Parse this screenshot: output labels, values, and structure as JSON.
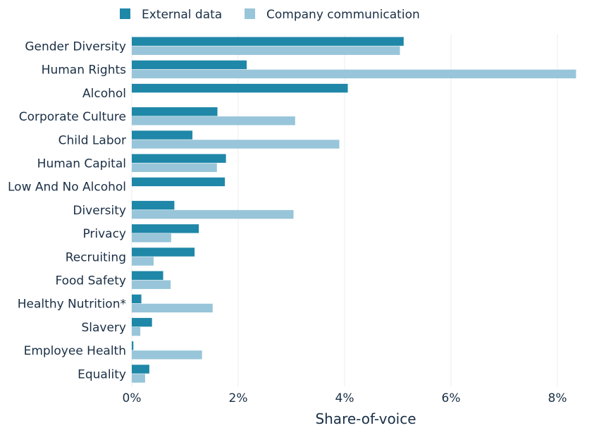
{
  "chart_data": {
    "type": "bar",
    "orientation": "horizontal",
    "categories": [
      "Gender Diversity",
      "Human Rights",
      "Alcohol",
      "Corporate Culture",
      "Child Labor",
      "Human Capital",
      "Low And No Alcohol",
      "Diversity",
      "Privacy",
      "Recruiting",
      "Food Safety",
      "Healthy Nutrition*",
      "Slavery",
      "Employee Health",
      "Equality"
    ],
    "series": [
      {
        "name": "External data",
        "color": "#1f87a8",
        "values": [
          5.11,
          2.16,
          4.06,
          1.61,
          1.14,
          1.77,
          1.75,
          0.8,
          1.26,
          1.18,
          0.59,
          0.18,
          0.38,
          0.03,
          0.33
        ]
      },
      {
        "name": "Company communication",
        "color": "#98c5d9",
        "values": [
          5.04,
          8.35,
          0,
          3.07,
          3.9,
          1.6,
          0,
          3.04,
          0.74,
          0.41,
          0.73,
          1.52,
          0.16,
          1.32,
          0.25
        ]
      }
    ],
    "xlabel": "Share-of-voice",
    "ylabel": "",
    "xlim": [
      0,
      8.5
    ],
    "xticks": [
      0,
      2,
      4,
      6,
      8
    ],
    "tick_labels": [
      "0%",
      "2%",
      "4%",
      "6%",
      "8%"
    ],
    "grid": true,
    "legend_position": "top"
  }
}
